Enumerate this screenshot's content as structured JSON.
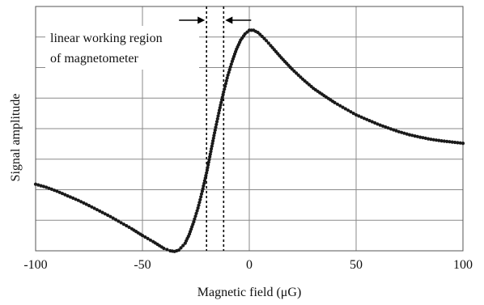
{
  "chart_data": {
    "type": "scatter",
    "xlabel": "Magnetic field (μG)",
    "ylabel": "Signal amplitude",
    "xlim": [
      -100,
      100
    ],
    "ylim": [
      0,
      8
    ],
    "x_ticks": [
      "-100",
      "-50",
      "0",
      "50",
      "100"
    ],
    "y_gridlines": 7,
    "grid": true,
    "annotation": {
      "line1": "linear working region",
      "line2": "of magnetometer",
      "region": [
        -20,
        -12
      ]
    },
    "series": [
      {
        "style": "dotted line",
        "color": "#1a1a1a",
        "x": [
          -100,
          -95,
          -90,
          -85,
          -80,
          -75,
          -70,
          -65,
          -60,
          -55,
          -50,
          -45,
          -40,
          -37,
          -35,
          -33,
          -30,
          -28,
          -26,
          -24,
          -22,
          -20,
          -18,
          -16,
          -14,
          -12,
          -10,
          -8,
          -6,
          -4,
          -2,
          0,
          2,
          4,
          6,
          8,
          10,
          15,
          20,
          25,
          30,
          35,
          40,
          45,
          50,
          55,
          60,
          65,
          70,
          75,
          80,
          85,
          90,
          95,
          100
        ],
        "y": [
          2.18,
          2.08,
          1.95,
          1.8,
          1.65,
          1.48,
          1.3,
          1.12,
          0.92,
          0.72,
          0.5,
          0.3,
          0.08,
          0.0,
          -0.02,
          0.02,
          0.25,
          0.55,
          0.95,
          1.4,
          1.95,
          2.55,
          3.25,
          3.95,
          4.6,
          5.2,
          5.75,
          6.2,
          6.6,
          6.9,
          7.1,
          7.22,
          7.22,
          7.15,
          7.02,
          6.88,
          6.72,
          6.32,
          5.95,
          5.62,
          5.32,
          5.08,
          4.85,
          4.65,
          4.45,
          4.3,
          4.15,
          4.02,
          3.9,
          3.8,
          3.72,
          3.65,
          3.6,
          3.56,
          3.52
        ]
      }
    ]
  }
}
